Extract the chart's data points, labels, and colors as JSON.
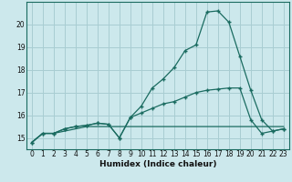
{
  "xlabel": "Humidex (Indice chaleur)",
  "background_color": "#cce8ec",
  "grid_color": "#a8cdd2",
  "line_color": "#1a6b60",
  "xlim": [
    -0.5,
    23.5
  ],
  "ylim": [
    14.5,
    21.0
  ],
  "xticks": [
    0,
    1,
    2,
    3,
    4,
    5,
    6,
    7,
    8,
    9,
    10,
    11,
    12,
    13,
    14,
    15,
    16,
    17,
    18,
    19,
    20,
    21,
    22,
    23
  ],
  "yticks": [
    15,
    16,
    17,
    18,
    19,
    20
  ],
  "line1_x": [
    0,
    1,
    2,
    3,
    4,
    5,
    6,
    7,
    8,
    9,
    10,
    11,
    12,
    13,
    14,
    15,
    16,
    17,
    18,
    19,
    20,
    21,
    22,
    23
  ],
  "line1_y": [
    14.8,
    15.2,
    15.2,
    15.3,
    15.4,
    15.5,
    15.5,
    15.5,
    15.5,
    15.5,
    15.5,
    15.5,
    15.5,
    15.5,
    15.5,
    15.5,
    15.5,
    15.5,
    15.5,
    15.5,
    15.5,
    15.5,
    15.5,
    15.5
  ],
  "line2_x": [
    0,
    1,
    2,
    3,
    4,
    5,
    6,
    7,
    8,
    9,
    10,
    11,
    12,
    13,
    14,
    15,
    16,
    17,
    18,
    19,
    20,
    21,
    22,
    23
  ],
  "line2_y": [
    14.8,
    15.2,
    15.2,
    15.4,
    15.5,
    15.55,
    15.65,
    15.6,
    15.0,
    15.9,
    16.1,
    16.3,
    16.5,
    16.6,
    16.8,
    17.0,
    17.1,
    17.15,
    17.2,
    17.2,
    15.8,
    15.2,
    15.3,
    15.4
  ],
  "line3_x": [
    0,
    1,
    2,
    3,
    4,
    5,
    6,
    7,
    8,
    9,
    10,
    11,
    12,
    13,
    14,
    15,
    16,
    17,
    18,
    19,
    20,
    21,
    22,
    23
  ],
  "line3_y": [
    14.8,
    15.2,
    15.2,
    15.4,
    15.5,
    15.55,
    15.65,
    15.6,
    15.0,
    15.9,
    16.4,
    17.2,
    17.6,
    18.1,
    18.85,
    19.1,
    20.55,
    20.6,
    20.1,
    18.6,
    17.1,
    15.8,
    15.3,
    15.4
  ]
}
